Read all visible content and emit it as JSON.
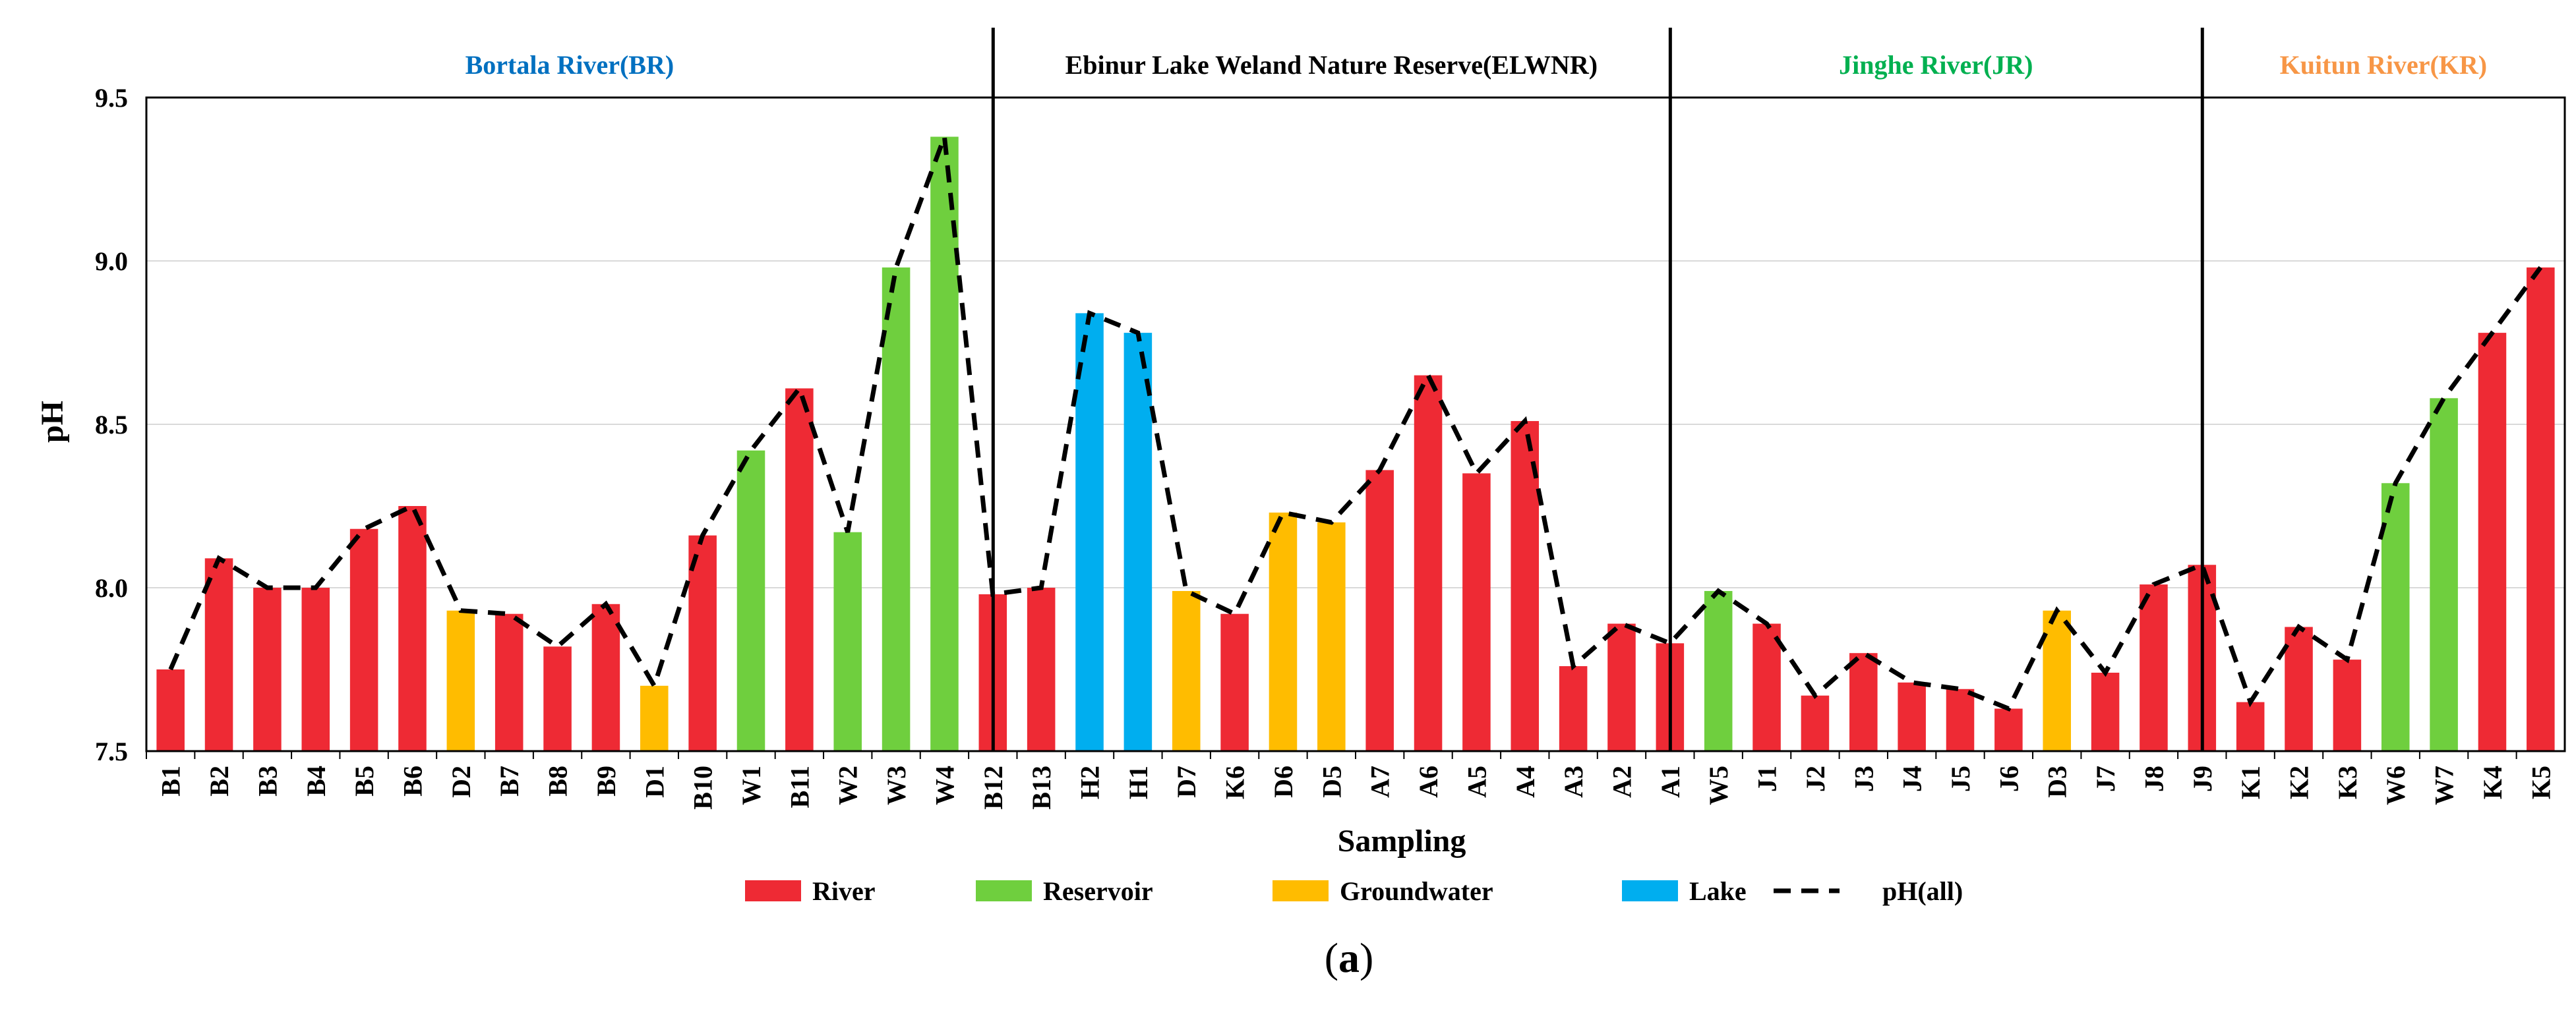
{
  "chart_data": {
    "type": "bar",
    "title": "",
    "xlabel": "Sampling",
    "ylabel": "pH",
    "ylim": [
      7.5,
      9.5
    ],
    "yticks": [
      "7.5",
      "8.0",
      "8.5",
      "9.0",
      "9.5"
    ],
    "caption_parts": [
      "(",
      "a",
      ")"
    ],
    "colors": {
      "River": "#ee2a34",
      "Reservoir": "#6fcf3e",
      "Groundwater": "#ffbc00",
      "Lake": "#00aeef"
    },
    "legend": [
      {
        "type": "River",
        "label": "River"
      },
      {
        "type": "Reservoir",
        "label": "Reservoir"
      },
      {
        "type": "Groundwater",
        "label": "Groundwater"
      },
      {
        "type": "Lake",
        "label": "Lake"
      },
      {
        "type": "line",
        "label": "pH(all)"
      }
    ],
    "regions": [
      {
        "label": "Bortala River(BR)",
        "color": "#0070c0",
        "start": 0,
        "end": 16
      },
      {
        "label": "Ebinur Lake Weland Nature Reserve(ELWNR)",
        "color": "#000000",
        "start": 17,
        "end": 30
      },
      {
        "label": "Jinghe River(JR)",
        "color": "#00b050",
        "start": 31,
        "end": 41
      },
      {
        "label": "Kuitun River(KR)",
        "color": "#f79646",
        "start": 42,
        "end": 48
      }
    ],
    "categories": [
      "B1",
      "B2",
      "B3",
      "B4",
      "B5",
      "B6",
      "D2",
      "B7",
      "B8",
      "B9",
      "D1",
      "B10",
      "W1",
      "B11",
      "W2",
      "W3",
      "W4",
      "B12",
      "B13",
      "H2",
      "H1",
      "D7",
      "K6",
      "D6",
      "D5",
      "A7",
      "A6",
      "A5",
      "A4",
      "A3",
      "A2",
      "A1",
      "W5",
      "J1",
      "J2",
      "J3",
      "J4",
      "J5",
      "J6",
      "D3",
      "J7",
      "J8",
      "J9",
      "K1",
      "K2",
      "K3",
      "W6",
      "W7",
      "K4",
      "K5"
    ],
    "types": [
      "River",
      "River",
      "River",
      "River",
      "River",
      "River",
      "Groundwater",
      "River",
      "River",
      "River",
      "Groundwater",
      "River",
      "Reservoir",
      "River",
      "Reservoir",
      "Reservoir",
      "Reservoir",
      "River",
      "River",
      "Lake",
      "Lake",
      "Groundwater",
      "River",
      "Groundwater",
      "Groundwater",
      "River",
      "River",
      "River",
      "River",
      "River",
      "River",
      "River",
      "Reservoir",
      "River",
      "River",
      "River",
      "River",
      "River",
      "River",
      "Groundwater",
      "River",
      "River",
      "River",
      "River",
      "River",
      "River",
      "Reservoir",
      "Reservoir",
      "River",
      "River"
    ],
    "values": [
      7.75,
      8.09,
      8.0,
      8.0,
      8.18,
      8.25,
      7.93,
      7.92,
      7.82,
      7.95,
      7.7,
      8.16,
      8.42,
      8.61,
      8.17,
      8.98,
      9.38,
      7.98,
      8.0,
      8.84,
      8.78,
      7.99,
      7.92,
      8.23,
      8.2,
      8.36,
      8.65,
      8.35,
      8.51,
      7.76,
      7.89,
      7.83,
      7.99,
      7.89,
      7.67,
      7.8,
      7.71,
      7.69,
      7.63,
      7.93,
      7.74,
      8.01,
      8.07,
      7.65,
      7.88,
      7.78,
      8.32,
      8.58,
      8.78,
      8.98
    ]
  }
}
